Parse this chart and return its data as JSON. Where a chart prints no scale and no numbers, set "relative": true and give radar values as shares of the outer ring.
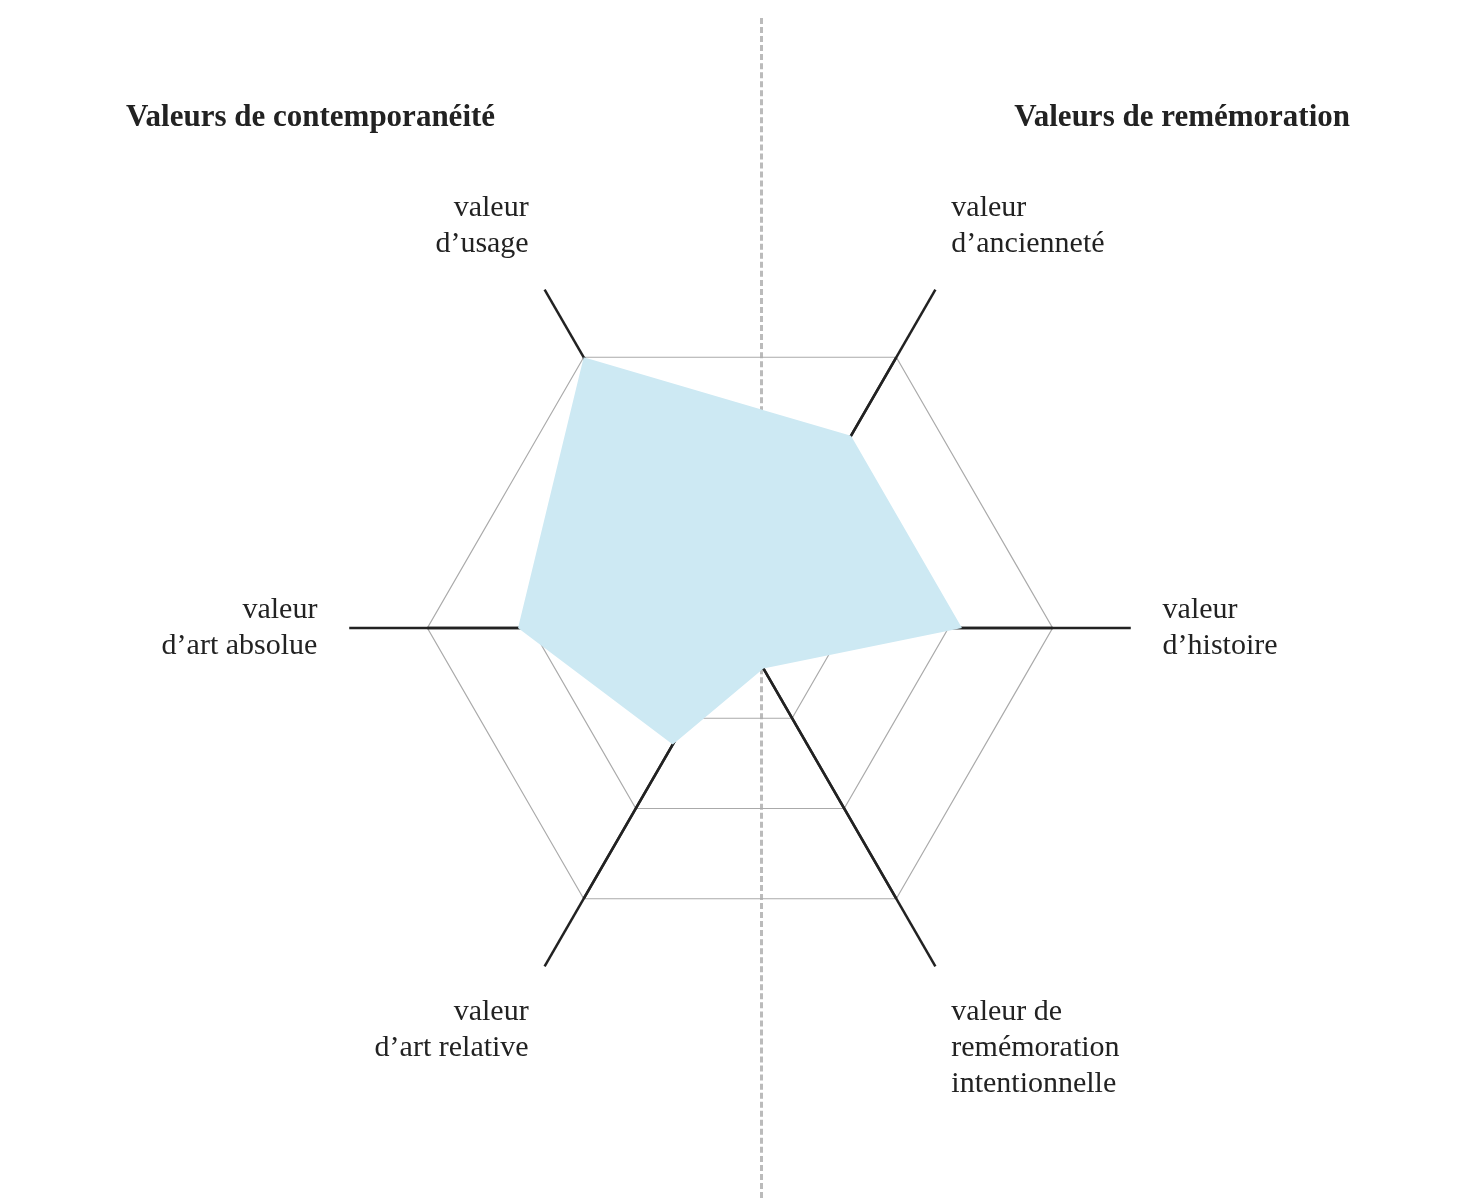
{
  "chart_data": {
    "type": "radar",
    "relative": true,
    "grid": true,
    "marker": "none",
    "legend": false,
    "categories": [
      "valeur d’ancienneté",
      "valeur d’histoire",
      "valeur de remémoration intentionnelle",
      "valeur d’art relative",
      "valeur d’art absolue",
      "valeur d’usage"
    ],
    "series": [
      {
        "color": "#cde9f3",
        "values": [
          0.71,
          0.71,
          0.15,
          0.43,
          0.71,
          1
        ]
      }
    ],
    "annotations": [
      "Valeurs de contemporanéité",
      "Valeurs de remémoration"
    ]
  }
}
